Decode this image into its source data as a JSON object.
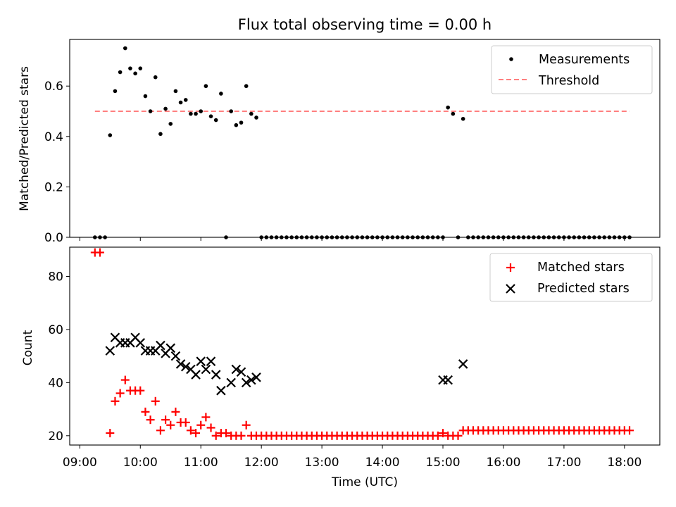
{
  "chart_data": [
    {
      "type": "scatter",
      "title": "Flux total observing time = 0.00 h",
      "xlabel": "",
      "ylabel": "Matched/Predicted stars",
      "ylim": [
        0,
        0.785
      ],
      "yticks": [
        "0.0",
        "0.2",
        "0.4",
        "0.6"
      ],
      "legend_placement": "top-right",
      "threshold": {
        "name": "Threshold",
        "value": 0.5,
        "x_start": "09:15",
        "x_end": "18:05",
        "color": "#ff7f7f",
        "style": "dashed"
      },
      "series": [
        {
          "name": "Measurements",
          "color": "#000000",
          "marker": "dot",
          "points": [
            [
              "09:15",
              0
            ],
            [
              "09:20",
              0
            ],
            [
              "09:25",
              0
            ],
            [
              "09:30",
              0.405
            ],
            [
              "09:35",
              0.58
            ],
            [
              "09:40",
              0.655
            ],
            [
              "09:45",
              0.75
            ],
            [
              "09:50",
              0.67
            ],
            [
              "09:55",
              0.65
            ],
            [
              "10:00",
              0.67
            ],
            [
              "10:05",
              0.56
            ],
            [
              "10:10",
              0.5
            ],
            [
              "10:15",
              0.635
            ],
            [
              "10:20",
              0.41
            ],
            [
              "10:25",
              0.51
            ],
            [
              "10:30",
              0.45
            ],
            [
              "10:35",
              0.58
            ],
            [
              "10:40",
              0.535
            ],
            [
              "10:45",
              0.545
            ],
            [
              "10:50",
              0.49
            ],
            [
              "10:55",
              0.49
            ],
            [
              "11:00",
              0.5
            ],
            [
              "11:05",
              0.6
            ],
            [
              "11:10",
              0.48
            ],
            [
              "11:15",
              0.465
            ],
            [
              "11:20",
              0.57
            ],
            [
              "11:25",
              0
            ],
            [
              "11:30",
              0.5
            ],
            [
              "11:35",
              0.445
            ],
            [
              "11:40",
              0.455
            ],
            [
              "11:45",
              0.6
            ],
            [
              "11:50",
              0.49
            ],
            [
              "11:55",
              0.475
            ],
            [
              "12:00",
              0
            ],
            [
              "12:05",
              0
            ],
            [
              "12:10",
              0
            ],
            [
              "12:15",
              0
            ],
            [
              "12:20",
              0
            ],
            [
              "12:25",
              0
            ],
            [
              "12:30",
              0
            ],
            [
              "12:35",
              0
            ],
            [
              "12:40",
              0
            ],
            [
              "12:45",
              0
            ],
            [
              "12:50",
              0
            ],
            [
              "12:55",
              0
            ],
            [
              "13:00",
              0
            ],
            [
              "13:05",
              0
            ],
            [
              "13:10",
              0
            ],
            [
              "13:15",
              0
            ],
            [
              "13:20",
              0
            ],
            [
              "13:25",
              0
            ],
            [
              "13:30",
              0
            ],
            [
              "13:35",
              0
            ],
            [
              "13:40",
              0
            ],
            [
              "13:45",
              0
            ],
            [
              "13:50",
              0
            ],
            [
              "13:55",
              0
            ],
            [
              "14:00",
              0
            ],
            [
              "14:05",
              0
            ],
            [
              "14:10",
              0
            ],
            [
              "14:15",
              0
            ],
            [
              "14:20",
              0
            ],
            [
              "14:25",
              0
            ],
            [
              "14:30",
              0
            ],
            [
              "14:35",
              0
            ],
            [
              "14:40",
              0
            ],
            [
              "14:45",
              0
            ],
            [
              "14:50",
              0
            ],
            [
              "14:55",
              0
            ],
            [
              "15:00",
              0
            ],
            [
              "15:05",
              0.515
            ],
            [
              "15:10",
              0.49
            ],
            [
              "15:15",
              0
            ],
            [
              "15:20",
              0.47
            ],
            [
              "15:25",
              0
            ],
            [
              "15:30",
              0
            ],
            [
              "15:35",
              0
            ],
            [
              "15:40",
              0
            ],
            [
              "15:45",
              0
            ],
            [
              "15:50",
              0
            ],
            [
              "15:55",
              0
            ],
            [
              "16:00",
              0
            ],
            [
              "16:05",
              0
            ],
            [
              "16:10",
              0
            ],
            [
              "16:15",
              0
            ],
            [
              "16:20",
              0
            ],
            [
              "16:25",
              0
            ],
            [
              "16:30",
              0
            ],
            [
              "16:35",
              0
            ],
            [
              "16:40",
              0
            ],
            [
              "16:45",
              0
            ],
            [
              "16:50",
              0
            ],
            [
              "16:55",
              0
            ],
            [
              "17:00",
              0
            ],
            [
              "17:05",
              0
            ],
            [
              "17:10",
              0
            ],
            [
              "17:15",
              0
            ],
            [
              "17:20",
              0
            ],
            [
              "17:25",
              0
            ],
            [
              "17:30",
              0
            ],
            [
              "17:35",
              0
            ],
            [
              "17:40",
              0
            ],
            [
              "17:45",
              0
            ],
            [
              "17:50",
              0
            ],
            [
              "17:55",
              0
            ],
            [
              "18:00",
              0
            ],
            [
              "18:05",
              0
            ]
          ]
        }
      ]
    },
    {
      "type": "scatter",
      "title": "",
      "xlabel": "Time (UTC)",
      "ylabel": "Count",
      "ylim": [
        16.5,
        91
      ],
      "yticks": [
        "20",
        "40",
        "60",
        "80"
      ],
      "xticks": [
        "09:00",
        "10:00",
        "11:00",
        "12:00",
        "13:00",
        "14:00",
        "15:00",
        "16:00",
        "17:00",
        "18:00"
      ],
      "xlim": [
        "08:50",
        "18:35"
      ],
      "legend_placement": "top-right",
      "series": [
        {
          "name": "Matched stars",
          "color": "#ff0000",
          "marker": "plus",
          "points": [
            [
              "09:15",
              89
            ],
            [
              "09:20",
              89
            ],
            [
              "09:30",
              21
            ],
            [
              "09:35",
              33
            ],
            [
              "09:40",
              36
            ],
            [
              "09:45",
              41
            ],
            [
              "09:50",
              37
            ],
            [
              "09:55",
              37
            ],
            [
              "10:00",
              37
            ],
            [
              "10:05",
              29
            ],
            [
              "10:10",
              26
            ],
            [
              "10:15",
              33
            ],
            [
              "10:20",
              22
            ],
            [
              "10:25",
              26
            ],
            [
              "10:30",
              24
            ],
            [
              "10:35",
              29
            ],
            [
              "10:40",
              25
            ],
            [
              "10:45",
              25
            ],
            [
              "10:50",
              22
            ],
            [
              "10:55",
              21
            ],
            [
              "11:00",
              24
            ],
            [
              "11:05",
              27
            ],
            [
              "11:10",
              23
            ],
            [
              "11:15",
              20
            ],
            [
              "11:20",
              21
            ],
            [
              "11:25",
              21
            ],
            [
              "11:30",
              20
            ],
            [
              "11:35",
              20
            ],
            [
              "11:40",
              20
            ],
            [
              "11:45",
              24
            ],
            [
              "11:50",
              20
            ],
            [
              "11:55",
              20
            ],
            [
              "12:00",
              20
            ],
            [
              "12:05",
              20
            ],
            [
              "12:10",
              20
            ],
            [
              "12:15",
              20
            ],
            [
              "12:20",
              20
            ],
            [
              "12:25",
              20
            ],
            [
              "12:30",
              20
            ],
            [
              "12:35",
              20
            ],
            [
              "12:40",
              20
            ],
            [
              "12:45",
              20
            ],
            [
              "12:50",
              20
            ],
            [
              "12:55",
              20
            ],
            [
              "13:00",
              20
            ],
            [
              "13:05",
              20
            ],
            [
              "13:10",
              20
            ],
            [
              "13:15",
              20
            ],
            [
              "13:20",
              20
            ],
            [
              "13:25",
              20
            ],
            [
              "13:30",
              20
            ],
            [
              "13:35",
              20
            ],
            [
              "13:40",
              20
            ],
            [
              "13:45",
              20
            ],
            [
              "13:50",
              20
            ],
            [
              "13:55",
              20
            ],
            [
              "14:00",
              20
            ],
            [
              "14:05",
              20
            ],
            [
              "14:10",
              20
            ],
            [
              "14:15",
              20
            ],
            [
              "14:20",
              20
            ],
            [
              "14:25",
              20
            ],
            [
              "14:30",
              20
            ],
            [
              "14:35",
              20
            ],
            [
              "14:40",
              20
            ],
            [
              "14:45",
              20
            ],
            [
              "14:50",
              20
            ],
            [
              "14:55",
              20
            ],
            [
              "15:00",
              21
            ],
            [
              "15:05",
              20
            ],
            [
              "15:10",
              20
            ],
            [
              "15:15",
              20
            ],
            [
              "15:20",
              22
            ],
            [
              "15:25",
              22
            ],
            [
              "15:30",
              22
            ],
            [
              "15:35",
              22
            ],
            [
              "15:40",
              22
            ],
            [
              "15:45",
              22
            ],
            [
              "15:50",
              22
            ],
            [
              "15:55",
              22
            ],
            [
              "16:00",
              22
            ],
            [
              "16:05",
              22
            ],
            [
              "16:10",
              22
            ],
            [
              "16:15",
              22
            ],
            [
              "16:20",
              22
            ],
            [
              "16:25",
              22
            ],
            [
              "16:30",
              22
            ],
            [
              "16:35",
              22
            ],
            [
              "16:40",
              22
            ],
            [
              "16:45",
              22
            ],
            [
              "16:50",
              22
            ],
            [
              "16:55",
              22
            ],
            [
              "17:00",
              22
            ],
            [
              "17:05",
              22
            ],
            [
              "17:10",
              22
            ],
            [
              "17:15",
              22
            ],
            [
              "17:20",
              22
            ],
            [
              "17:25",
              22
            ],
            [
              "17:30",
              22
            ],
            [
              "17:35",
              22
            ],
            [
              "17:40",
              22
            ],
            [
              "17:45",
              22
            ],
            [
              "17:50",
              22
            ],
            [
              "17:55",
              22
            ],
            [
              "18:00",
              22
            ],
            [
              "18:05",
              22
            ]
          ]
        },
        {
          "name": "Predicted stars",
          "color": "#000000",
          "marker": "x",
          "points": [
            [
              "09:30",
              52
            ],
            [
              "09:35",
              57
            ],
            [
              "09:40",
              55
            ],
            [
              "09:45",
              55
            ],
            [
              "09:50",
              55
            ],
            [
              "09:55",
              57
            ],
            [
              "10:00",
              55
            ],
            [
              "10:05",
              52
            ],
            [
              "10:10",
              52
            ],
            [
              "10:15",
              52
            ],
            [
              "10:20",
              54
            ],
            [
              "10:25",
              51
            ],
            [
              "10:30",
              53
            ],
            [
              "10:35",
              50
            ],
            [
              "10:40",
              47
            ],
            [
              "10:45",
              46
            ],
            [
              "10:50",
              45
            ],
            [
              "10:55",
              43
            ],
            [
              "11:00",
              48
            ],
            [
              "11:05",
              45
            ],
            [
              "11:10",
              48
            ],
            [
              "11:15",
              43
            ],
            [
              "11:20",
              37
            ],
            [
              "11:30",
              40
            ],
            [
              "11:35",
              45
            ],
            [
              "11:40",
              44
            ],
            [
              "11:45",
              40
            ],
            [
              "11:50",
              41
            ],
            [
              "11:55",
              42
            ],
            [
              "15:00",
              41
            ],
            [
              "15:05",
              41
            ],
            [
              "15:20",
              47
            ]
          ]
        }
      ]
    }
  ]
}
